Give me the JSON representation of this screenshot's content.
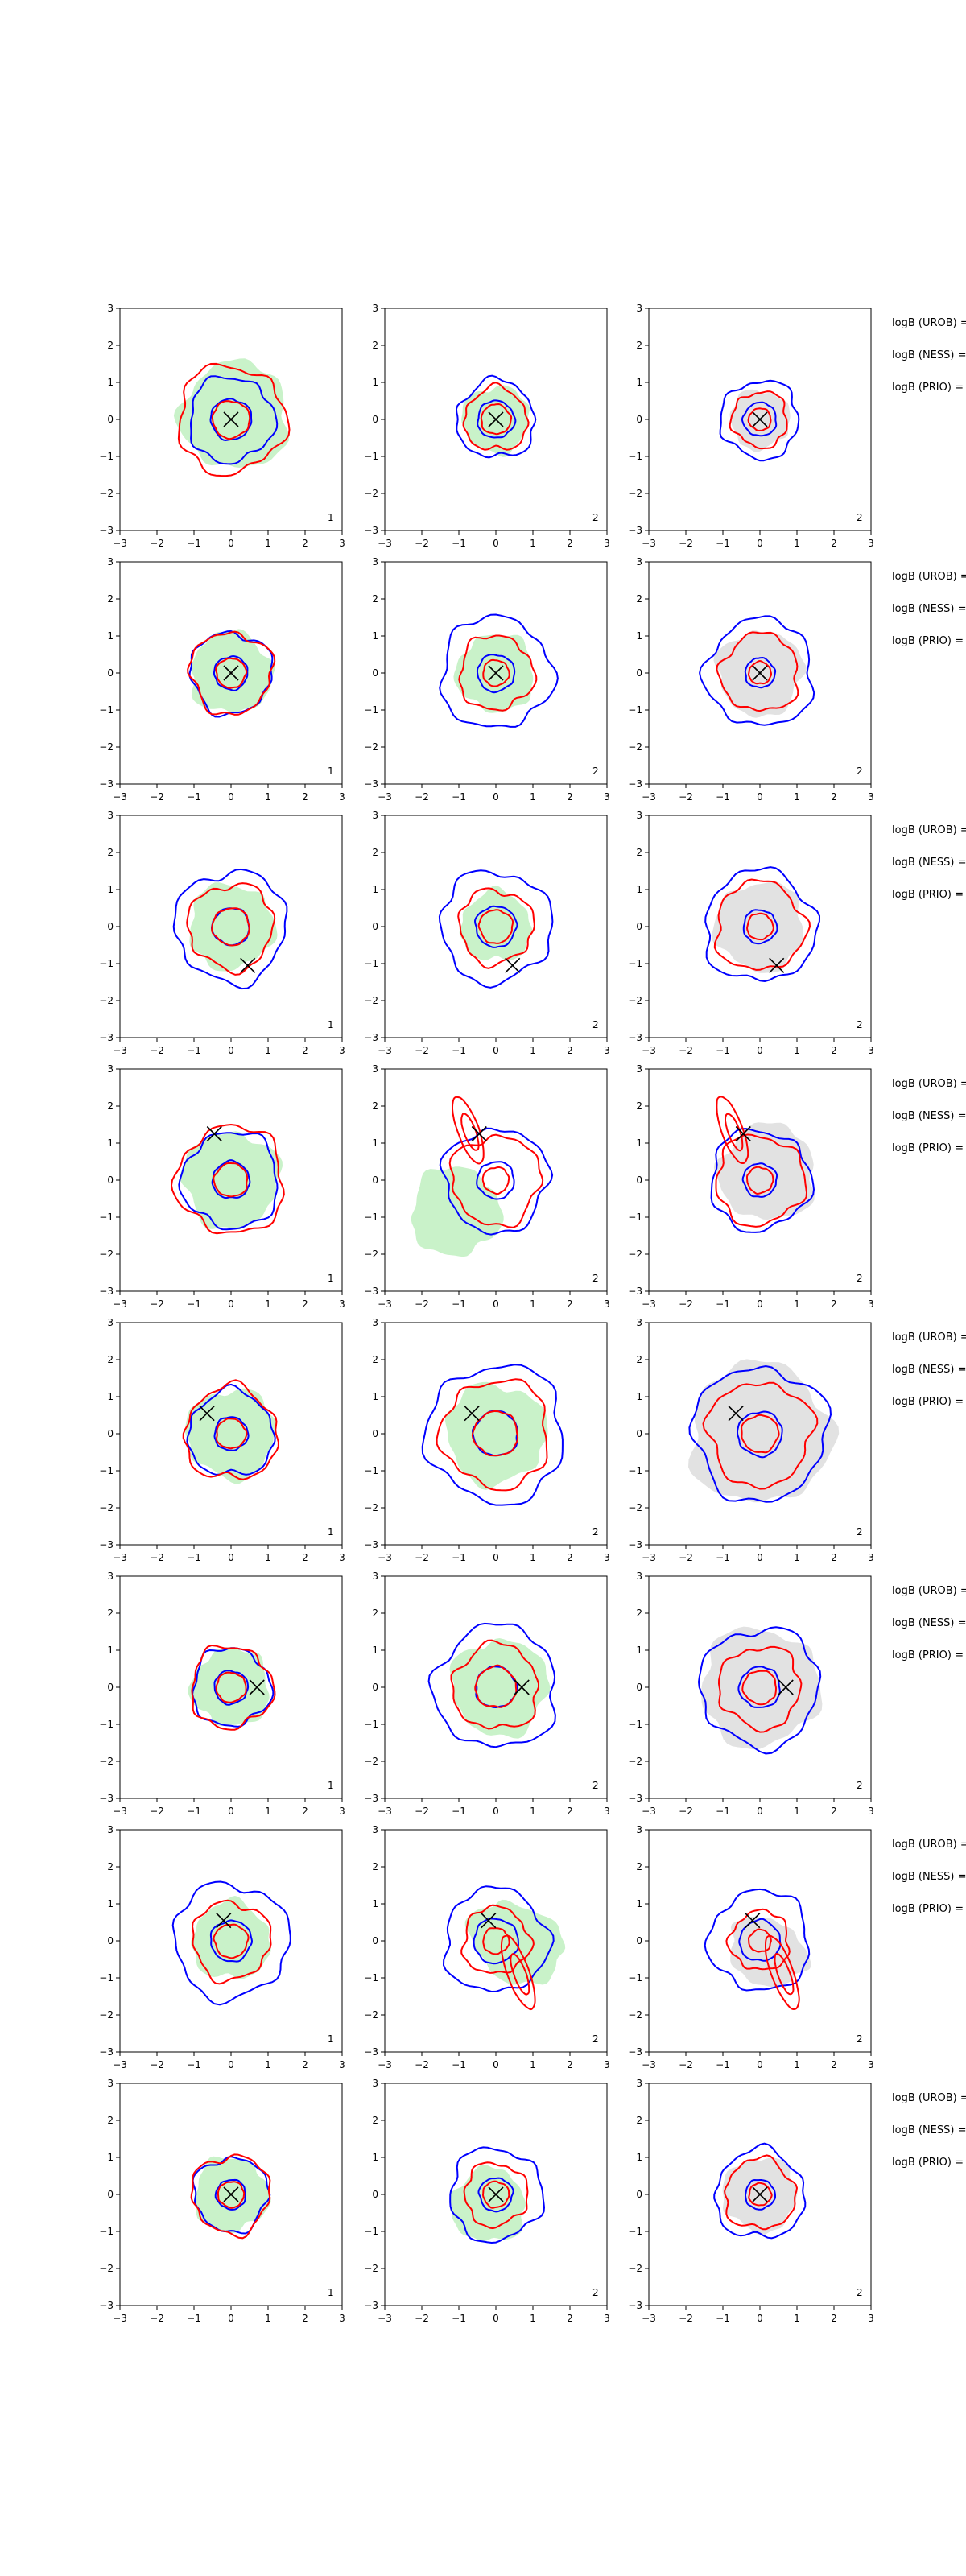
{
  "figure": {
    "rows": 8,
    "cols": 3,
    "colors": {
      "fill_green": "#c9f2c9",
      "fill_grey": "#e2e2e2",
      "contour_blue": "#0000ff",
      "contour_red": "#ff0000",
      "marker": "#000000"
    },
    "row_labels": [
      "logB (UROB) =",
      "logB (NESS) =",
      "logB (PRIO) ="
    ],
    "panel_badges": [
      "1",
      "2",
      "2"
    ],
    "column_fill": [
      "green",
      "green",
      "grey"
    ]
  },
  "chart_data": [
    {
      "type": "contour",
      "row": 1,
      "x_ticks": [
        "−3",
        "−2",
        "−1",
        "0",
        "1",
        "2",
        "3"
      ],
      "y_ticks": [
        "3",
        "2",
        "1",
        "0",
        "−1",
        "−2",
        "−3"
      ],
      "xlim": [
        -3,
        3
      ],
      "ylim": [
        -3,
        3
      ],
      "truth": [
        0,
        0
      ],
      "panels": [
        {
          "badge": "1",
          "blue": [
            0.55,
            1.15
          ],
          "red": [
            0.5,
            1.45
          ],
          "shade": {
            "cx": 0.1,
            "cy": 0.1,
            "r": 1.45,
            "rot": 0,
            "ar": 1.0
          }
        },
        {
          "badge": "2",
          "blue": [
            0.5,
            1.05
          ],
          "red": [
            0.4,
            0.85
          ],
          "shade": {
            "cx": 0,
            "cy": 0,
            "r": 0.9,
            "rot": 0,
            "ar": 1.0
          }
        },
        {
          "badge": "2",
          "blue": [
            0.45,
            1.05
          ],
          "red": [
            0.3,
            0.75
          ],
          "shade": {
            "cx": 0,
            "cy": 0,
            "r": 0.8,
            "rot": 0,
            "ar": 1.0
          }
        }
      ]
    },
    {
      "type": "contour",
      "row": 2,
      "x_ticks": [
        "−3",
        "−2",
        "−1",
        "0",
        "1",
        "2",
        "3"
      ],
      "y_ticks": [
        "3",
        "2",
        "1",
        "0",
        "−1",
        "−2",
        "−3"
      ],
      "xlim": [
        -3,
        3
      ],
      "ylim": [
        -3,
        3
      ],
      "truth": [
        0,
        0
      ],
      "panels": [
        {
          "badge": "1",
          "blue": [
            0.45,
            1.1
          ],
          "red": [
            0.4,
            1.1
          ],
          "shade": {
            "cx": 0,
            "cy": 0,
            "r": 1.1,
            "rot": 0,
            "ar": 1.0
          }
        },
        {
          "badge": "2",
          "blue": [
            0.5,
            1.5
          ],
          "red": [
            0.35,
            1.0
          ],
          "shade": {
            "cx": 0,
            "cy": 0,
            "r": 1.05,
            "rot": 0,
            "ar": 1.0
          }
        },
        {
          "badge": "2",
          "blue": [
            0.4,
            1.45
          ],
          "red": [
            0.3,
            1.05
          ],
          "shade": {
            "cx": 0,
            "cy": 0,
            "r": 1.15,
            "rot": 0,
            "ar": 1.0
          }
        }
      ]
    },
    {
      "type": "contour",
      "row": 3,
      "x_ticks": [
        "−3",
        "−2",
        "−1",
        "0",
        "1",
        "2",
        "3"
      ],
      "y_ticks": [
        "3",
        "2",
        "1",
        "0",
        "−1",
        "−2",
        "−3"
      ],
      "xlim": [
        -3,
        3
      ],
      "ylim": [
        -3,
        3
      ],
      "truth": [
        0.45,
        -1.05
      ],
      "panels": [
        {
          "badge": "1",
          "blue": [
            0.5,
            1.5
          ],
          "red": [
            0.5,
            1.15
          ],
          "shade": {
            "cx": 0,
            "cy": 0,
            "r": 1.15,
            "rot": 0,
            "ar": 1.0
          }
        },
        {
          "badge": "2",
          "blue": [
            0.55,
            1.5
          ],
          "red": [
            0.45,
            1.0
          ],
          "shade": {
            "cx": 0,
            "cy": 0,
            "r": 0.95,
            "rot": 0,
            "ar": 1.0
          }
        },
        {
          "badge": "2",
          "blue": [
            0.45,
            1.5
          ],
          "red": [
            0.35,
            1.2
          ],
          "shade": {
            "cx": 0,
            "cy": 0,
            "r": 1.2,
            "rot": 0,
            "ar": 1.0
          }
        }
      ]
    },
    {
      "type": "contour",
      "row": 4,
      "x_ticks": [
        "−3",
        "−2",
        "−1",
        "0",
        "1",
        "2",
        "3"
      ],
      "y_ticks": [
        "3",
        "2",
        "1",
        "0",
        "−1",
        "−2",
        "−3"
      ],
      "xlim": [
        -3,
        3
      ],
      "ylim": [
        -3,
        3
      ],
      "truth": [
        -0.45,
        1.25
      ],
      "panels": [
        {
          "badge": "1",
          "blue": [
            0.5,
            1.3
          ],
          "red": [
            0.45,
            1.45
          ],
          "shade": {
            "cx": 0,
            "cy": 0,
            "r": 1.3,
            "rot": 0,
            "ar": 1.0
          }
        },
        {
          "badge": "2",
          "blue": [
            0.5,
            1.4
          ],
          "red": [
            0.35,
            1.2
          ],
          "shade": {
            "cx": -1.1,
            "cy": -0.85,
            "r": 1.2,
            "rot": 0,
            "ar": 1.0
          },
          "red_lobe": {
            "cx": -0.75,
            "cy": 1.35,
            "r": 0.95,
            "rot": -70,
            "ar": 0.3
          }
        },
        {
          "badge": "2",
          "blue": [
            0.45,
            1.35
          ],
          "red": [
            0.35,
            1.2
          ],
          "shade": {
            "cx": 0.2,
            "cy": 0.2,
            "r": 1.3,
            "rot": 0,
            "ar": 1.0
          },
          "red_lobe": {
            "cx": -0.75,
            "cy": 1.35,
            "r": 0.95,
            "rot": -70,
            "ar": 0.3
          }
        }
      ]
    },
    {
      "type": "contour",
      "row": 5,
      "x_ticks": [
        "−3",
        "−2",
        "−1",
        "0",
        "1",
        "2",
        "3"
      ],
      "y_ticks": [
        "3",
        "2",
        "1",
        "0",
        "−1",
        "−2",
        "−3"
      ],
      "xlim": [
        -3,
        3
      ],
      "ylim": [
        -3,
        3
      ],
      "truth": [
        -0.65,
        0.55
      ],
      "panels": [
        {
          "badge": "1",
          "blue": [
            0.45,
            1.15
          ],
          "red": [
            0.4,
            1.25
          ],
          "shade": {
            "cx": 0,
            "cy": 0,
            "r": 1.2,
            "rot": 0,
            "ar": 1.0
          }
        },
        {
          "badge": "2",
          "blue": [
            0.6,
            1.85
          ],
          "red": [
            0.6,
            1.45
          ],
          "shade": {
            "cx": 0,
            "cy": 0,
            "r": 1.35,
            "rot": 0,
            "ar": 1.0
          }
        },
        {
          "badge": "2",
          "blue": [
            0.6,
            1.8
          ],
          "red": [
            0.5,
            1.4
          ],
          "shade": {
            "cx": 0,
            "cy": 0,
            "r": 1.9,
            "rot": 0,
            "ar": 1.0
          }
        }
      ]
    },
    {
      "type": "contour",
      "row": 6,
      "x_ticks": [
        "−3",
        "−2",
        "−1",
        "0",
        "1",
        "2",
        "3"
      ],
      "y_ticks": [
        "3",
        "2",
        "1",
        "0",
        "−1",
        "−2",
        "−3"
      ],
      "xlim": [
        -3,
        3
      ],
      "ylim": [
        -3,
        3
      ],
      "truth": [
        0.7,
        0
      ],
      "panels": [
        {
          "badge": "1",
          "blue": [
            0.45,
            1.05
          ],
          "red": [
            0.4,
            1.1
          ],
          "shade": {
            "cx": 0,
            "cy": 0,
            "r": 1.05,
            "rot": 0,
            "ar": 1.0
          }
        },
        {
          "badge": "2",
          "blue": [
            0.55,
            1.65
          ],
          "red": [
            0.55,
            1.15
          ],
          "shade": {
            "cx": 0.1,
            "cy": 0,
            "r": 1.3,
            "rot": 0,
            "ar": 1.0
          }
        },
        {
          "badge": "2",
          "blue": [
            0.55,
            1.6
          ],
          "red": [
            0.45,
            1.1
          ],
          "shade": {
            "cx": 0,
            "cy": 0,
            "r": 1.6,
            "rot": 0,
            "ar": 1.0
          }
        }
      ]
    },
    {
      "type": "contour",
      "row": 7,
      "x_ticks": [
        "−3",
        "−2",
        "−1",
        "0",
        "1",
        "2",
        "3"
      ],
      "y_ticks": [
        "3",
        "2",
        "1",
        "0",
        "−1",
        "−2",
        "−3"
      ],
      "xlim": [
        -3,
        3
      ],
      "ylim": [
        -3,
        3
      ],
      "truth": [
        -0.2,
        0.55
      ],
      "panels": [
        {
          "badge": "1",
          "blue": [
            0.55,
            1.55
          ],
          "red": [
            0.45,
            1.05
          ],
          "shade": {
            "cx": 0,
            "cy": 0,
            "r": 1.05,
            "rot": 0,
            "ar": 1.0
          }
        },
        {
          "badge": "2",
          "blue": [
            0.6,
            1.4
          ],
          "red": [
            0.35,
            0.9
          ],
          "shade": {
            "cx": 0.55,
            "cy": -0.05,
            "r": 1.35,
            "rot": -30,
            "ar": 0.75
          },
          "red_lobe": {
            "cx": 0.6,
            "cy": -0.85,
            "r": 1.05,
            "rot": -70,
            "ar": 0.28
          }
        },
        {
          "badge": "2",
          "blue": [
            0.55,
            1.35
          ],
          "red": [
            0.3,
            0.8
          ],
          "shade": {
            "cx": 0.2,
            "cy": -0.3,
            "r": 1.1,
            "rot": -30,
            "ar": 0.8
          },
          "red_lobe": {
            "cx": 0.6,
            "cy": -0.85,
            "r": 1.05,
            "rot": -70,
            "ar": 0.28
          }
        }
      ]
    },
    {
      "type": "contour",
      "row": 8,
      "x_ticks": [
        "−3",
        "−2",
        "−1",
        "0",
        "1",
        "2",
        "3"
      ],
      "y_ticks": [
        "3",
        "2",
        "1",
        "0",
        "−1",
        "−2",
        "−3"
      ],
      "xlim": [
        -3,
        3
      ],
      "ylim": [
        -3,
        3
      ],
      "truth": [
        0,
        0
      ],
      "panels": [
        {
          "badge": "1",
          "blue": [
            0.4,
            1.0
          ],
          "red": [
            0.35,
            1.05
          ],
          "shade": {
            "cx": 0,
            "cy": 0,
            "r": 1.0,
            "rot": 0,
            "ar": 1.0
          }
        },
        {
          "badge": "2",
          "blue": [
            0.45,
            1.25
          ],
          "red": [
            0.35,
            0.85
          ],
          "shade": {
            "cx": -0.2,
            "cy": -0.3,
            "r": 1.0,
            "rot": 0,
            "ar": 1.0
          }
        },
        {
          "badge": "2",
          "blue": [
            0.4,
            1.2
          ],
          "red": [
            0.3,
            0.95
          ],
          "shade": {
            "cx": 0,
            "cy": 0,
            "r": 1.0,
            "rot": 0,
            "ar": 1.0
          }
        }
      ]
    }
  ]
}
